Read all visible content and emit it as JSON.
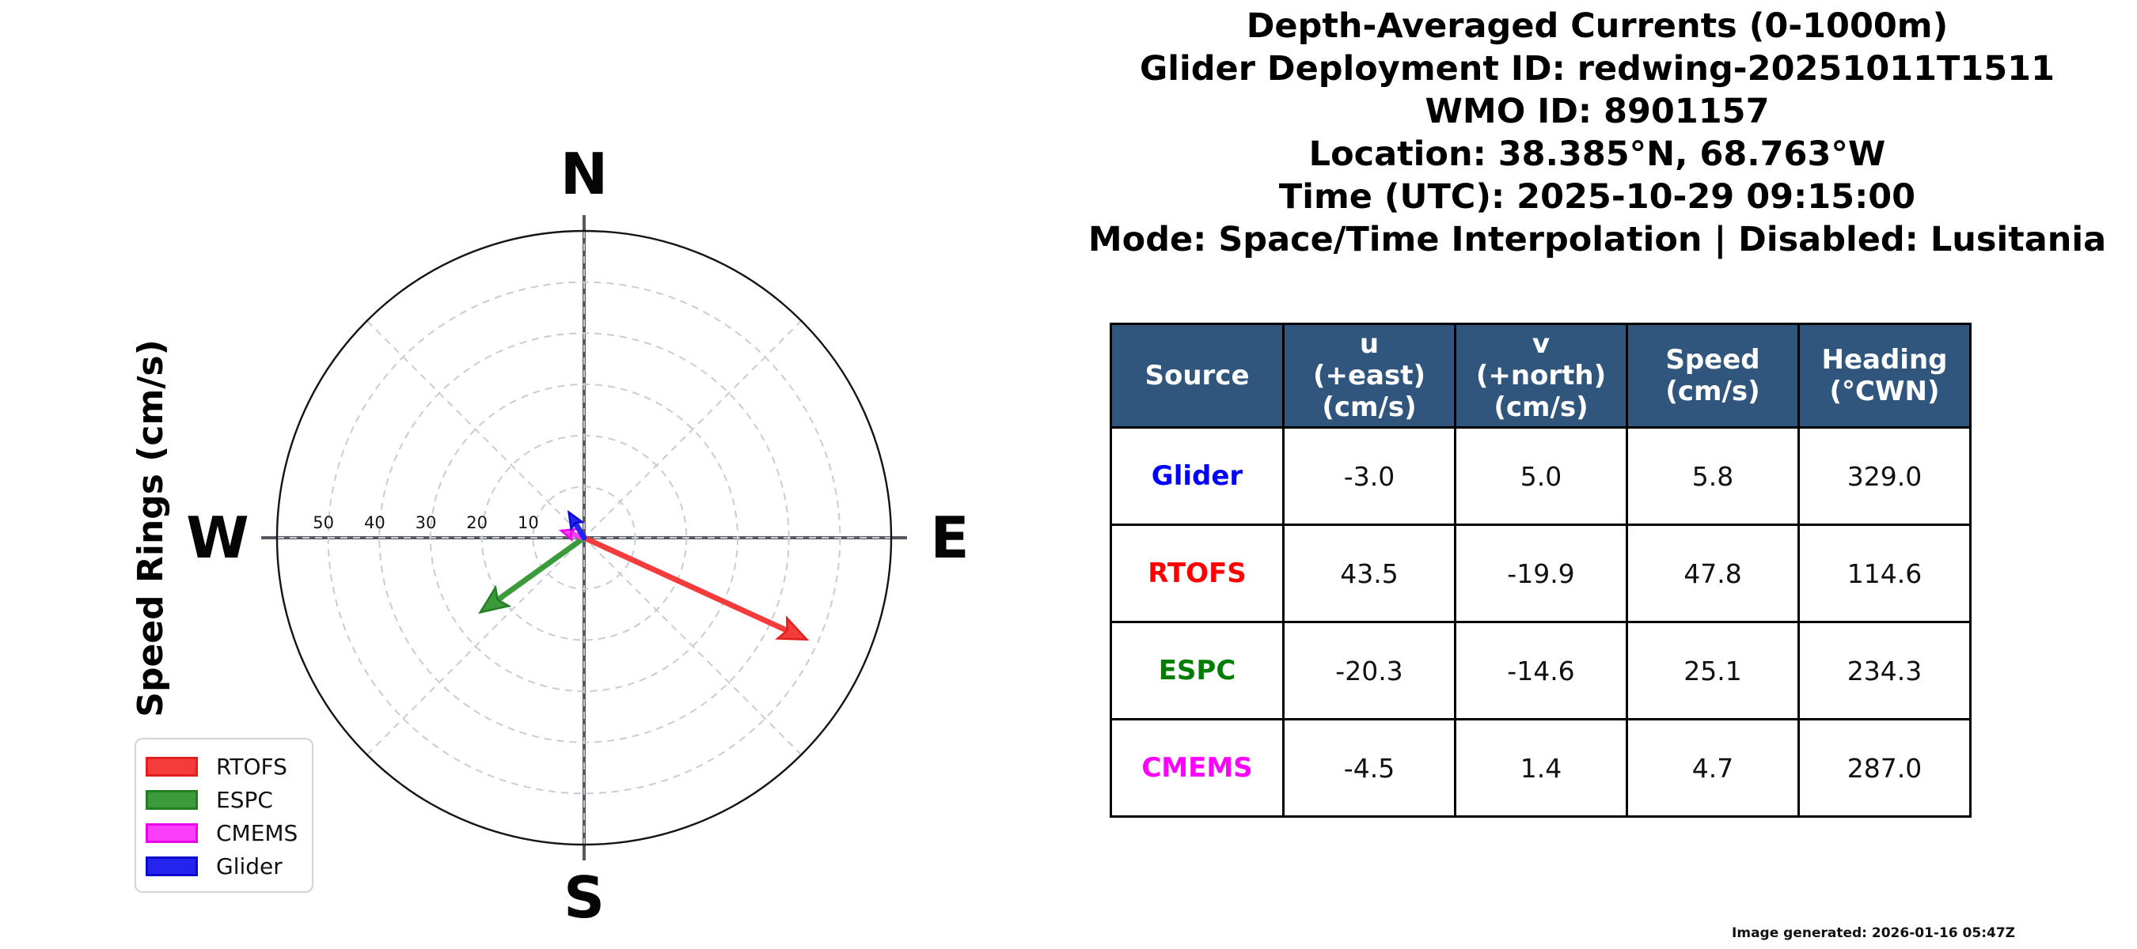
{
  "header": {
    "lines": [
      "Depth-Averaged Currents (0-1000m)",
      "Glider Deployment ID: redwing-20251011T1511",
      "WMO ID: 8901157",
      "Location: 38.385°N, 68.763°W",
      "Time (UTC): 2025-10-29 09:15:00",
      "Mode: Space/Time Interpolation | Disabled: Lusitania"
    ]
  },
  "chart_data": {
    "type": "polar_vector",
    "axis_label": "Speed Rings (cm/s)",
    "compass": {
      "north": "N",
      "east": "E",
      "south": "S",
      "west": "W"
    },
    "rings_cm_s": [
      10,
      20,
      30,
      40,
      50
    ],
    "ring_tick_labels": [
      "50",
      "40",
      "30",
      "20",
      "10"
    ],
    "outer_ring": 60,
    "grid_color": "#c9cdd3",
    "axis_cross_color": "#55585f",
    "vectors": [
      {
        "name": "RTOFS",
        "u": 43.5,
        "v": -19.9,
        "speed": 47.8,
        "heading": 114.6,
        "color": "#f43c3c",
        "edge": "#e01f1f"
      },
      {
        "name": "ESPC",
        "u": -20.3,
        "v": -14.6,
        "speed": 25.1,
        "heading": 234.3,
        "color": "#3b9b3b",
        "edge": "#217e21"
      },
      {
        "name": "CMEMS",
        "u": -4.5,
        "v": 1.4,
        "speed": 4.7,
        "heading": 287.0,
        "color": "#fa3efa",
        "edge": "#e805e8"
      },
      {
        "name": "Glider",
        "u": -3.0,
        "v": 5.0,
        "speed": 5.8,
        "heading": 329.0,
        "color": "#2424ee",
        "edge": "#0b0bd0"
      }
    ],
    "legend_labels": [
      "RTOFS",
      "ESPC",
      "CMEMS",
      "Glider"
    ]
  },
  "table": {
    "header_bg": "#31567d",
    "headers": [
      "Source",
      "u\n(+east)\n(cm/s)",
      "v\n(+north)\n(cm/s)",
      "Speed\n(cm/s)",
      "Heading\n(°CWN)"
    ],
    "rows": [
      {
        "source": "Glider",
        "color": "#0000ff",
        "u": "-3.0",
        "v": "5.0",
        "speed": "5.8",
        "heading": "329.0"
      },
      {
        "source": "RTOFS",
        "color": "#ff0000",
        "u": "43.5",
        "v": "-19.9",
        "speed": "47.8",
        "heading": "114.6"
      },
      {
        "source": "ESPC",
        "color": "#007d00",
        "u": "-20.3",
        "v": "-14.6",
        "speed": "25.1",
        "heading": "234.3"
      },
      {
        "source": "CMEMS",
        "color": "#ff00ff",
        "u": "-4.5",
        "v": "1.4",
        "speed": "4.7",
        "heading": "287.0"
      }
    ]
  },
  "footer": {
    "generated": "Image generated: 2026-01-16 05:47Z"
  }
}
